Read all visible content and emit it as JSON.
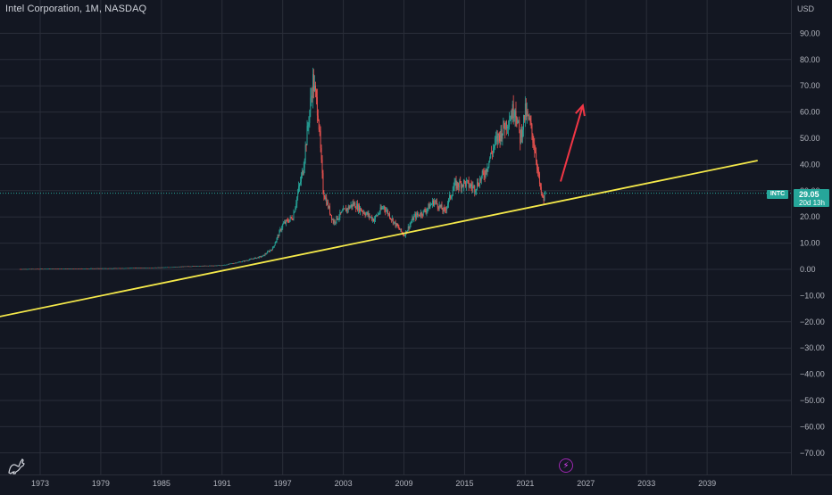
{
  "header": {
    "symbol_title": "Intel Corporation, 1M, NASDAQ",
    "currency": "USD"
  },
  "price_scale": {
    "labels": [
      "90.00",
      "80.00",
      "70.00",
      "60.00",
      "50.00",
      "40.00",
      "30.00",
      "20.00",
      "10.00",
      "0.00",
      "−10.00",
      "−20.00",
      "−30.00",
      "−40.00",
      "−50.00",
      "−60.00",
      "−70.00"
    ]
  },
  "time_scale": {
    "labels": [
      "1973",
      "1979",
      "1985",
      "1991",
      "1997",
      "2003",
      "2009",
      "2015",
      "2021",
      "2027",
      "2033",
      "2039"
    ]
  },
  "last_price": {
    "ticker": "INTC",
    "price": "29.05",
    "countdown": "20d 13h"
  },
  "colors": {
    "background": "#131722",
    "grid": "#2a2e39",
    "up": "#26a69a",
    "down": "#ef5350",
    "trendline": "#f5e94a",
    "arrow": "#f23645"
  },
  "icons": {
    "logo": "tradingview-logo-icon",
    "flash": "lightning-icon"
  },
  "chart_data": {
    "type": "candlestick",
    "title": "Intel Corporation, 1M, NASDAQ",
    "x_range": [
      1970,
      2044
    ],
    "y_range": [
      -75,
      100
    ],
    "ylabel": "USD",
    "grid": true,
    "last_price": 29.05,
    "series": [
      {
        "price_path": [
          [
            1971,
            0.1
          ],
          [
            1980,
            0.4
          ],
          [
            1985,
            0.7
          ],
          [
            1988,
            1.2
          ],
          [
            1991,
            1.5
          ],
          [
            1993,
            3.0
          ],
          [
            1995,
            5.0
          ],
          [
            1996,
            8.0
          ],
          [
            1997,
            17
          ],
          [
            1998,
            20
          ],
          [
            1999,
            38
          ],
          [
            2000,
            72
          ],
          [
            2000.5,
            60
          ],
          [
            2001,
            30
          ],
          [
            2002,
            18
          ],
          [
            2003,
            22
          ],
          [
            2004,
            25
          ],
          [
            2006,
            19
          ],
          [
            2007,
            24
          ],
          [
            2008,
            18
          ],
          [
            2009,
            13
          ],
          [
            2010,
            20
          ],
          [
            2011,
            22
          ],
          [
            2012,
            26
          ],
          [
            2013,
            22
          ],
          [
            2014,
            32
          ],
          [
            2015,
            33
          ],
          [
            2016,
            31
          ],
          [
            2017,
            37
          ],
          [
            2018,
            48
          ],
          [
            2019,
            55
          ],
          [
            2020,
            62
          ],
          [
            2020.5,
            50
          ],
          [
            2021,
            60
          ],
          [
            2021.5,
            55
          ],
          [
            2022,
            45
          ],
          [
            2022.5,
            30
          ],
          [
            2022.8,
            26
          ],
          [
            2023,
            29.05
          ]
        ]
      }
    ],
    "annotations": [
      {
        "type": "trendline",
        "from": [
          1969,
          -18
        ],
        "to": [
          2044,
          41.5
        ]
      },
      {
        "type": "arrow",
        "from": [
          2024.5,
          33.5
        ],
        "to": [
          2026.7,
          62.5
        ]
      }
    ]
  }
}
